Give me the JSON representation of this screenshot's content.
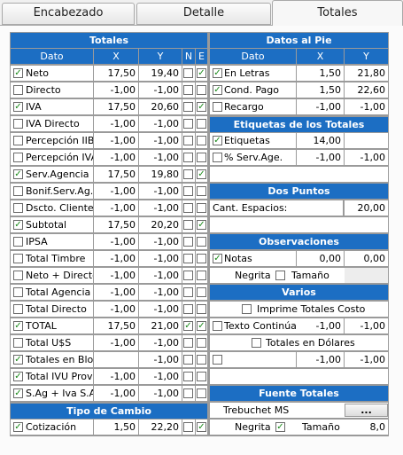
{
  "tabs": [
    "Encabezado",
    "Detalle",
    "Totales"
  ],
  "totales": {
    "title": "Totales",
    "cols": [
      "Dato",
      "X",
      "Y",
      "N",
      "E"
    ],
    "rows": [
      {
        "chk": true,
        "label": "Neto",
        "x": "17,50",
        "y": "19,40",
        "n": false,
        "e": true
      },
      {
        "chk": false,
        "label": "Directo",
        "x": "-1,00",
        "y": "-1,00",
        "n": false,
        "e": false
      },
      {
        "chk": true,
        "label": "IVA",
        "x": "17,50",
        "y": "20,60",
        "n": false,
        "e": true
      },
      {
        "chk": false,
        "label": "IVA Directo",
        "x": "-1,00",
        "y": "-1,00",
        "n": false,
        "e": false
      },
      {
        "chk": false,
        "label": "Percepción IIBB",
        "x": "-1,00",
        "y": "-1,00",
        "n": false,
        "e": false
      },
      {
        "chk": false,
        "label": "Percepción IVA",
        "x": "-1,00",
        "y": "-1,00",
        "n": false,
        "e": false
      },
      {
        "chk": true,
        "label": "Serv.Agencia",
        "x": "17,50",
        "y": "19,80",
        "n": false,
        "e": true
      },
      {
        "chk": false,
        "label": "Bonif.Serv.Ag.",
        "x": "-1,00",
        "y": "-1,00",
        "n": false,
        "e": false
      },
      {
        "chk": false,
        "label": "Dscto. Cliente",
        "x": "-1,00",
        "y": "-1,00",
        "n": false,
        "e": false
      },
      {
        "chk": true,
        "label": "Subtotal",
        "x": "17,50",
        "y": "20,20",
        "n": false,
        "e": true
      },
      {
        "chk": false,
        "label": "IPSA",
        "x": "-1,00",
        "y": "-1,00",
        "n": false,
        "e": false
      },
      {
        "chk": false,
        "label": "Total Timbre",
        "x": "-1,00",
        "y": "-1,00",
        "n": false,
        "e": false
      },
      {
        "chk": false,
        "label": "Neto + Directo",
        "x": "-1,00",
        "y": "-1,00",
        "n": false,
        "e": false
      },
      {
        "chk": false,
        "label": "Total Agencia",
        "x": "-1,00",
        "y": "-1,00",
        "n": false,
        "e": false
      },
      {
        "chk": false,
        "label": "Total Directo",
        "x": "-1,00",
        "y": "-1,00",
        "n": false,
        "e": false
      },
      {
        "chk": true,
        "label": "TOTAL",
        "x": "17,50",
        "y": "21,00",
        "n": true,
        "e": true
      },
      {
        "chk": false,
        "label": "Total U$S",
        "x": "-1,00",
        "y": "-1,00",
        "n": false,
        "e": false
      },
      {
        "chk": true,
        "label": "Totales en Bloque",
        "x": "",
        "y": "-1,00",
        "n": false,
        "e": false
      },
      {
        "chk": true,
        "label": "Total IVU Prov",
        "x": "-1,00",
        "y": "-1,00",
        "n": false,
        "e": false
      },
      {
        "chk": true,
        "label": "S.Ag + Iva S.Ag",
        "x": "-1,00",
        "y": "-1,00",
        "n": false,
        "e": false
      }
    ]
  },
  "tipo_cambio": {
    "title": "Tipo de Cambio",
    "row": {
      "chk": true,
      "label": "Cotización",
      "x": "1,50",
      "y": "22,20",
      "n": false,
      "e": true
    }
  },
  "datos_pie": {
    "title": "Datos al Pie",
    "cols": [
      "Dato",
      "X",
      "Y"
    ],
    "rows": [
      {
        "chk": true,
        "label": "En Letras",
        "x": "1,50",
        "y": "21,80"
      },
      {
        "chk": true,
        "label": "Cond. Pago",
        "x": "1,50",
        "y": "22,60"
      },
      {
        "chk": false,
        "label": "Recargo",
        "x": "-1,00",
        "y": "-1,00"
      }
    ]
  },
  "etiquetas": {
    "title": "Etiquetas de los Totales",
    "rows": [
      {
        "chk": true,
        "label": "Etiquetas",
        "x": "14,00",
        "y": ""
      },
      {
        "chk": false,
        "label": "% Serv.Age.",
        "x": "-1,00",
        "y": "-1,00"
      }
    ]
  },
  "dos_puntos": {
    "title": "Dos Puntos",
    "label": "Cant. Espacios:",
    "value": "20,00"
  },
  "observaciones": {
    "title": "Observaciones",
    "notas_label": "Notas",
    "notas_chk": true,
    "x": "0,00",
    "y": "0,00",
    "negrita_label": "Negrita",
    "negrita_chk": false,
    "tamano_label": "Tamaño"
  },
  "varios": {
    "title": "Varios",
    "imprime_label": "Imprime Totales Costo",
    "imprime_chk": false,
    "texto_label": "Texto Continúa",
    "texto_chk": false,
    "texto_x": "-1,00",
    "texto_y": "-1,00",
    "dolares_label": "Totales en Dólares",
    "dolares_chk": false,
    "blank_chk": false,
    "blank_x": "-1,00",
    "blank_y": "-1,00"
  },
  "fuente": {
    "title": "Fuente Totales",
    "font_name": "Trebuchet MS",
    "button_label": "...",
    "negrita_label": "Negrita",
    "negrita_chk": true,
    "tamano_label": "Tamaño",
    "tamano_value": "8,0"
  },
  "check_glyph": "✓"
}
